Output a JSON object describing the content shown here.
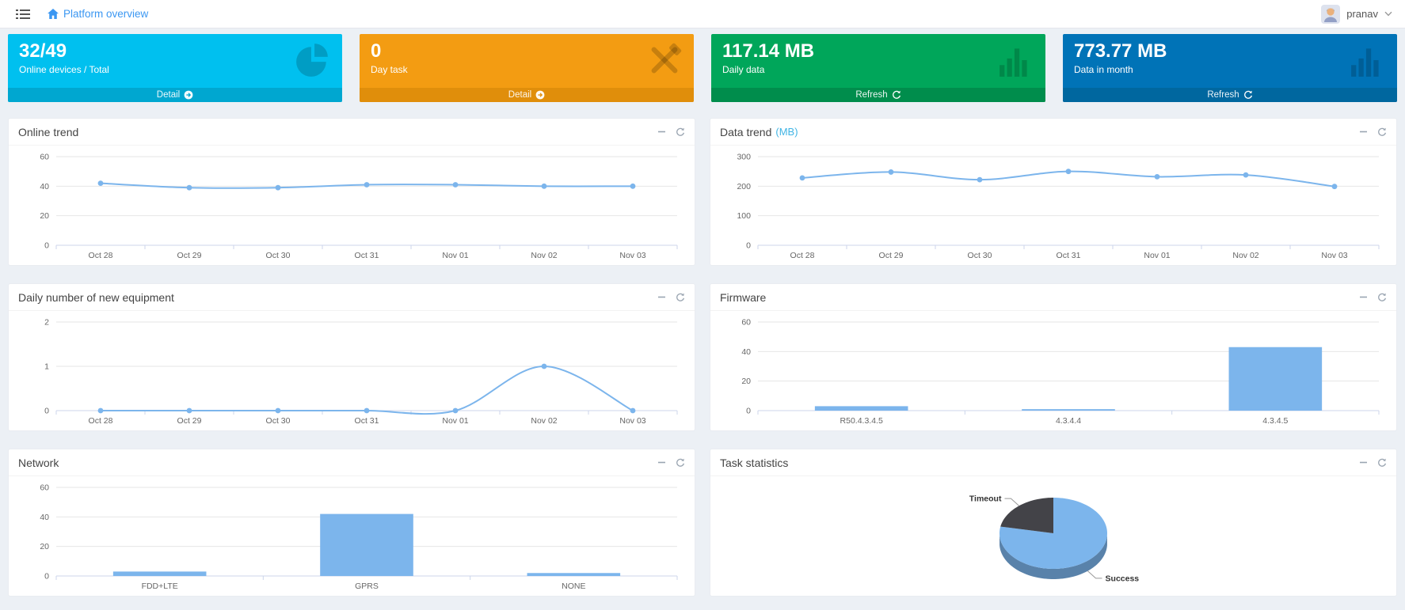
{
  "navbar": {
    "breadcrumb": "Platform overview",
    "user": "pranav"
  },
  "cards": [
    {
      "value": "32/49",
      "label": "Online devices / Total",
      "action": "Detail",
      "icon": "pie-chart-icon",
      "bg": "#00c0ef",
      "footer_bg": "#00a7d0"
    },
    {
      "value": "0",
      "label": "Day task",
      "action": "Detail",
      "icon": "tools-icon",
      "bg": "#f39c12",
      "footer_bg": "#e08e0b"
    },
    {
      "value": "117.14 MB",
      "label": "Daily data",
      "action": "Refresh",
      "icon": "bar-chart-icon",
      "bg": "#00a65a",
      "footer_bg": "#008d4c"
    },
    {
      "value": "773.77 MB",
      "label": "Data in month",
      "action": "Refresh",
      "icon": "bar-chart-icon",
      "bg": "#0073b7",
      "footer_bg": "#00679f"
    }
  ],
  "panels": [
    {
      "title": "Online trend",
      "suffix": ""
    },
    {
      "title": "Data trend",
      "suffix": "(MB)"
    },
    {
      "title": "Daily number of new equipment",
      "suffix": ""
    },
    {
      "title": "Firmware",
      "suffix": ""
    },
    {
      "title": "Network",
      "suffix": ""
    },
    {
      "title": "Task statistics",
      "suffix": ""
    }
  ],
  "chart_data": [
    {
      "id": "online-trend",
      "type": "line",
      "title": "Online trend",
      "categories": [
        "Oct 28",
        "Oct 29",
        "Oct 30",
        "Oct 31",
        "Nov 01",
        "Nov 02",
        "Nov 03"
      ],
      "values": [
        42,
        39,
        39,
        41,
        41,
        40,
        40
      ],
      "ylim": [
        0,
        60
      ],
      "yticks": [
        0,
        20,
        40,
        60
      ],
      "xlabel": "",
      "ylabel": "",
      "grid": true,
      "legend": "none",
      "color": "#7cb5ec"
    },
    {
      "id": "data-trend",
      "type": "line",
      "title": "Data trend (MB)",
      "categories": [
        "Oct 28",
        "Oct 29",
        "Oct 30",
        "Oct 31",
        "Nov 01",
        "Nov 02",
        "Nov 03"
      ],
      "values": [
        228,
        248,
        222,
        250,
        232,
        238,
        199
      ],
      "ylim": [
        0,
        300
      ],
      "yticks": [
        0,
        100,
        200,
        300
      ],
      "xlabel": "",
      "ylabel": "",
      "grid": true,
      "legend": "none",
      "color": "#7cb5ec"
    },
    {
      "id": "new-equipment",
      "type": "line",
      "title": "Daily number of new equipment",
      "categories": [
        "Oct 28",
        "Oct 29",
        "Oct 30",
        "Oct 31",
        "Nov 01",
        "Nov 02",
        "Nov 03"
      ],
      "values": [
        0,
        0,
        0,
        0,
        0,
        1,
        0
      ],
      "ylim": [
        0,
        2
      ],
      "yticks": [
        0,
        1,
        2
      ],
      "xlabel": "",
      "ylabel": "",
      "grid": true,
      "legend": "none",
      "color": "#7cb5ec"
    },
    {
      "id": "firmware",
      "type": "bar",
      "title": "Firmware",
      "categories": [
        "R50.4.3.4.5",
        "4.3.4.4",
        "4.3.4.5"
      ],
      "values": [
        3,
        1,
        43
      ],
      "ylim": [
        0,
        60
      ],
      "yticks": [
        0,
        20,
        40,
        60
      ],
      "xlabel": "",
      "ylabel": "",
      "grid": true,
      "legend": "none",
      "color": "#7cb5ec"
    },
    {
      "id": "network",
      "type": "bar",
      "title": "Network",
      "categories": [
        "FDD+LTE",
        "GPRS",
        "NONE"
      ],
      "values": [
        3,
        42,
        2
      ],
      "ylim": [
        0,
        60
      ],
      "yticks": [
        0,
        20,
        40,
        60
      ],
      "xlabel": "",
      "ylabel": "",
      "grid": true,
      "legend": "none",
      "color": "#7cb5ec"
    },
    {
      "id": "task-statistics",
      "type": "pie",
      "title": "Task statistics",
      "slices": [
        {
          "name": "Success",
          "value": 78,
          "color": "#7cb5ec"
        },
        {
          "name": "Timeout",
          "value": 22,
          "color": "#434348"
        }
      ],
      "legend": "none"
    }
  ]
}
